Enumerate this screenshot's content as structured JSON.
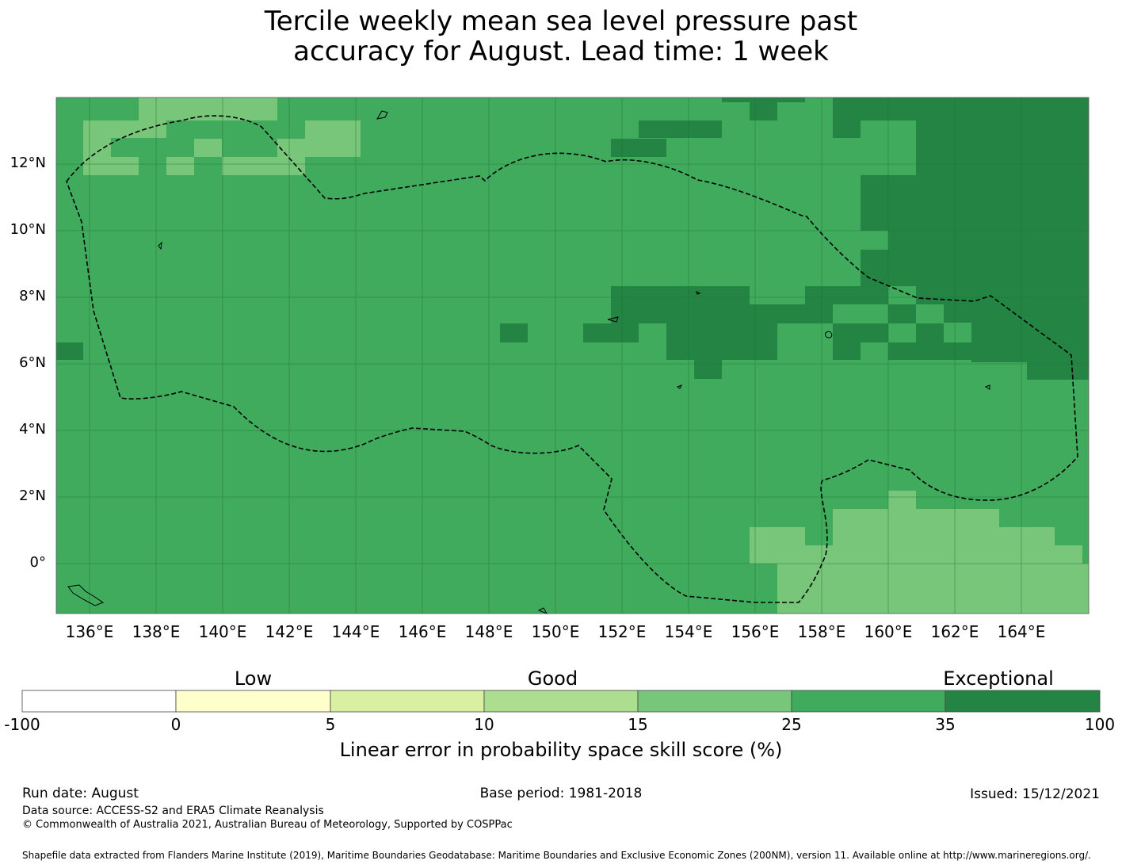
{
  "title_line1": "Tercile weekly mean sea level pressure past",
  "title_line2": "accuracy for August. Lead time: 1 week",
  "lon_labels": [
    "136°E",
    "138°E",
    "140°E",
    "142°E",
    "144°E",
    "146°E",
    "148°E",
    "150°E",
    "152°E",
    "154°E",
    "156°E",
    "158°E",
    "160°E",
    "162°E",
    "164°E"
  ],
  "lat_labels": [
    "12°N",
    "10°N",
    "8°N",
    "6°N",
    "4°N",
    "2°N",
    "0°"
  ],
  "colorbar": {
    "categories": [
      "Low",
      "Good",
      "Exceptional"
    ],
    "ticks": [
      "-100",
      "0",
      "5",
      "10",
      "15",
      "25",
      "35",
      "100"
    ],
    "colors": [
      "#ffffff",
      "#ffffcc",
      "#d9f0a3",
      "#addd8e",
      "#78c679",
      "#41ab5d",
      "#238443"
    ],
    "label": "Linear error in probability space skill score (%)"
  },
  "footer": {
    "run_date": "Run date: August",
    "base_period": "Base period: 1981-2018",
    "issued": "Issued: 15/12/2021",
    "data_source": "Data source: ACCESS-S2 and ERA5 Climate Reanalysis",
    "copyright": "© Commonwealth of Australia 2021, Australian Bureau of Meteorology, Supported by COSPPac",
    "shapefile": "Shapefile data extracted from Flanders Marine Institute (2019), Maritime Boundaries Geodatabase: Maritime Boundaries and Exclusive Economic Zones (200NM), version 11. Available online at http://www.marineregions.org/."
  }
}
